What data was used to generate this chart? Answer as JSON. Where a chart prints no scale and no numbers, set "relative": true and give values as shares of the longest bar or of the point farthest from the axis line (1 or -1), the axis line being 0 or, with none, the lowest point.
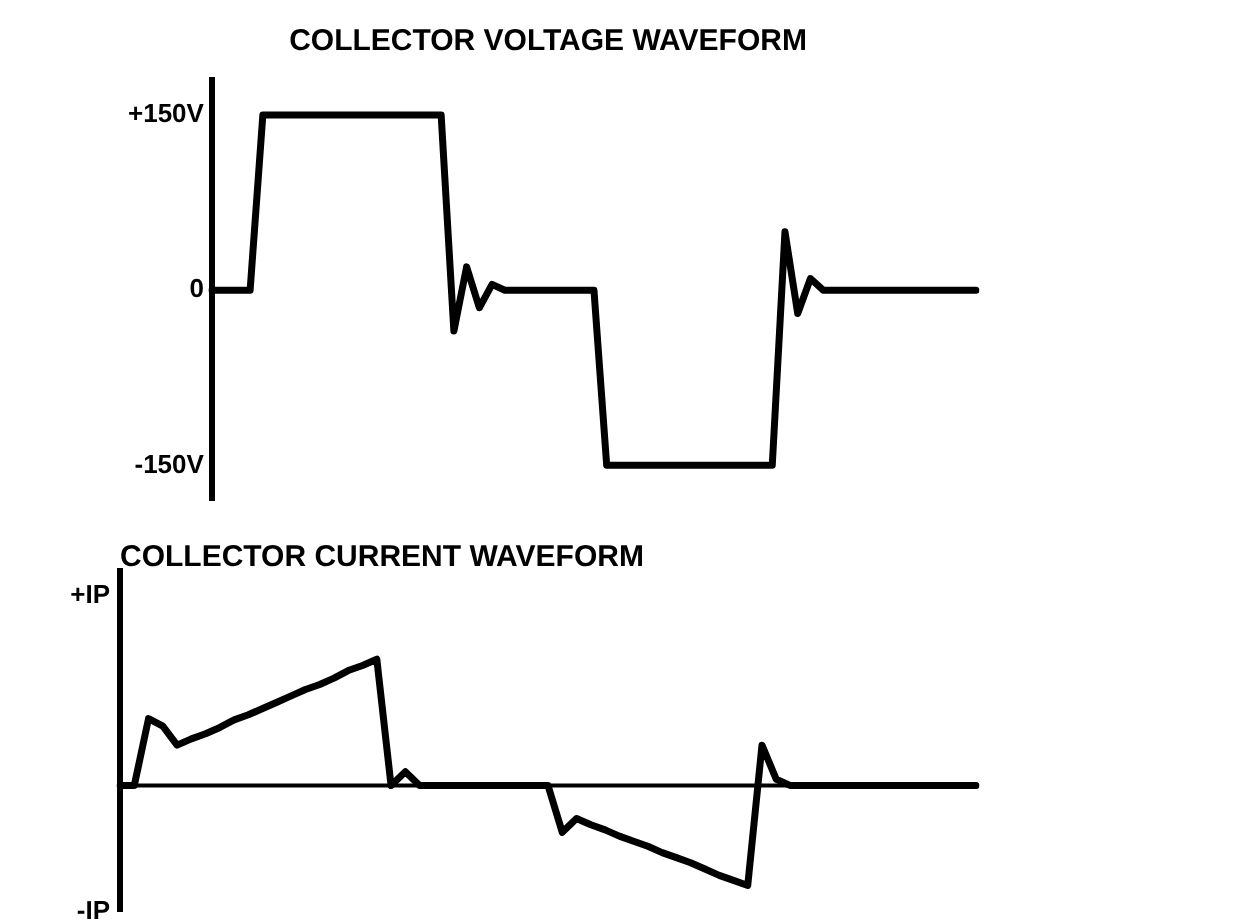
{
  "chart_data": [
    {
      "type": "line",
      "title": "COLLECTOR VOLTAGE WAVEFORM",
      "categories": [
        null,
        null,
        null,
        null,
        null,
        null,
        null,
        null,
        null,
        null,
        null,
        null,
        null,
        null,
        null,
        null,
        null,
        null,
        null,
        null,
        null,
        null,
        null,
        null,
        null,
        null,
        null,
        null,
        null,
        null,
        null,
        null,
        null,
        null,
        null,
        null,
        null,
        null,
        null,
        null,
        null,
        null,
        null,
        null,
        null,
        null,
        null,
        null,
        null,
        null,
        null,
        null,
        null,
        null,
        null,
        null,
        null,
        null,
        null,
        null,
        null
      ],
      "series": [
        {
          "color": "#000000",
          "values": [
            0,
            0,
            0,
            0,
            150,
            150,
            150,
            150,
            150,
            150,
            150,
            150,
            150,
            150,
            150,
            150,
            150,
            150,
            150,
            -35,
            20,
            -15,
            5,
            0,
            0,
            0,
            0,
            0,
            0,
            0,
            0,
            -150,
            -150,
            -150,
            -150,
            -150,
            -150,
            -150,
            -150,
            -150,
            -150,
            -150,
            -150,
            -150,
            -150,
            50,
            -20,
            10,
            0,
            0,
            0,
            0,
            0,
            0,
            0,
            0,
            0,
            0,
            0,
            0,
            0
          ]
        }
      ],
      "ylim": [
        -180,
        180
      ],
      "yticks": [
        {
          "value": 150,
          "label": "+150V"
        },
        0,
        {
          "value": -150,
          "label": "-150V"
        }
      ],
      "tick_labels": "y",
      "grid": false,
      "legend": false,
      "marker": "none"
    },
    {
      "type": "line",
      "title": "COLLECTOR CURRENT WAVEFORM",
      "categories": [
        null,
        null,
        null,
        null,
        null,
        null,
        null,
        null,
        null,
        null,
        null,
        null,
        null,
        null,
        null,
        null,
        null,
        null,
        null,
        null,
        null,
        null,
        null,
        null,
        null,
        null,
        null,
        null,
        null,
        null,
        null,
        null,
        null,
        null,
        null,
        null,
        null,
        null,
        null,
        null,
        null,
        null,
        null,
        null,
        null,
        null,
        null,
        null,
        null,
        null,
        null,
        null,
        null,
        null,
        null,
        null,
        null,
        null,
        null,
        null,
        null
      ],
      "series": [
        {
          "color": "#000000",
          "values": [
            0,
            0,
            0.53,
            0.47,
            0.32,
            0.37,
            0.41,
            0.46,
            0.52,
            0.56,
            0.61,
            0.66,
            0.71,
            0.76,
            0.8,
            0.85,
            0.91,
            0.95,
            1,
            0,
            0.11,
            0,
            0,
            0,
            0,
            0,
            0,
            0,
            0,
            0,
            0,
            -0.37,
            -0.26,
            -0.31,
            -0.35,
            -0.4,
            -0.44,
            -0.48,
            -0.53,
            -0.57,
            -0.61,
            -0.66,
            -0.71,
            -0.75,
            -0.79,
            0.32,
            0.05,
            0,
            0,
            0,
            0,
            0,
            0,
            0,
            0,
            0,
            0,
            0,
            0,
            0,
            0
          ]
        }
      ],
      "relative": true,
      "annotations": [
        "+IP",
        "-IP"
      ],
      "tick_labels": false,
      "grid": false,
      "legend": false,
      "marker": "none"
    }
  ]
}
